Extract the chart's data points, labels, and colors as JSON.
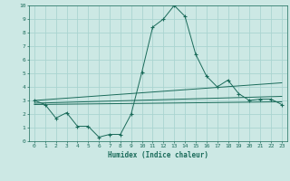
{
  "xlabel": "Humidex (Indice chaleur)",
  "ylabel": "",
  "background_color": "#cce8e4",
  "grid_color": "#aad4d0",
  "line_color": "#1a6b5a",
  "xlim": [
    -0.5,
    23.5
  ],
  "ylim": [
    0,
    10
  ],
  "xticks": [
    0,
    1,
    2,
    3,
    4,
    5,
    6,
    7,
    8,
    9,
    10,
    11,
    12,
    13,
    14,
    15,
    16,
    17,
    18,
    19,
    20,
    21,
    22,
    23
  ],
  "yticks": [
    0,
    1,
    2,
    3,
    4,
    5,
    6,
    7,
    8,
    9,
    10
  ],
  "series": {
    "main": {
      "x": [
        0,
        1,
        2,
        3,
        4,
        5,
        6,
        7,
        8,
        9,
        10,
        11,
        12,
        13,
        14,
        15,
        16,
        17,
        18,
        19,
        20,
        21,
        22,
        23
      ],
      "y": [
        3.0,
        2.7,
        1.7,
        2.1,
        1.1,
        1.1,
        0.3,
        0.5,
        0.5,
        2.0,
        5.1,
        8.4,
        9.0,
        10.0,
        9.2,
        6.4,
        4.8,
        4.0,
        4.5,
        3.5,
        3.0,
        3.1,
        3.1,
        2.7
      ]
    },
    "linear1": {
      "x": [
        0,
        23
      ],
      "y": [
        3.0,
        4.3
      ]
    },
    "linear2": {
      "x": [
        0,
        23
      ],
      "y": [
        2.8,
        3.3
      ]
    },
    "linear3": {
      "x": [
        0,
        23
      ],
      "y": [
        2.7,
        2.9
      ]
    }
  }
}
